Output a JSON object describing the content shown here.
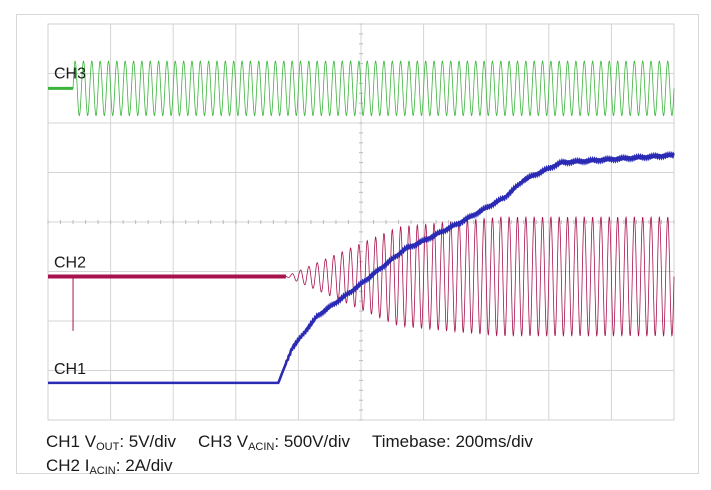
{
  "chart_data": {
    "type": "line",
    "title": "",
    "grid": true,
    "divisions": {
      "x": 10,
      "y": 8
    },
    "channels": [
      {
        "label": "CH3",
        "quantity": "V_ACIN",
        "scale": "500V/div",
        "color": "#3cb43c",
        "baseline_div": 6.7,
        "amplitude_div": 0.55,
        "start_div": 0.4,
        "cycles_per_div": 7.5
      },
      {
        "label": "CH2",
        "quantity": "I_ACIN",
        "scale": "2A/div",
        "color": "#a8124e",
        "baseline_div": 2.9,
        "start_div": 0.4,
        "cycles_per_div": 7.5,
        "envelope_div": [
          [
            0,
            0
          ],
          [
            3.8,
            0
          ],
          [
            5.6,
            1.0
          ],
          [
            7.2,
            1.2
          ],
          [
            10,
            1.2
          ]
        ]
      },
      {
        "label": "CH1",
        "quantity": "V_OUT",
        "scale": "5V/div",
        "color": "#2a2ab4",
        "points_div": [
          [
            0,
            0.75
          ],
          [
            3.68,
            0.75
          ],
          [
            3.74,
            0.95
          ],
          [
            3.9,
            1.45
          ],
          [
            4.3,
            2.1
          ],
          [
            4.9,
            2.65
          ],
          [
            5.7,
            3.45
          ],
          [
            6.0,
            3.62
          ],
          [
            6.6,
            4.0
          ],
          [
            7.3,
            4.5
          ],
          [
            7.6,
            4.85
          ],
          [
            8.2,
            5.2
          ],
          [
            10,
            5.35
          ]
        ]
      }
    ]
  },
  "captions": {
    "ch1_prefix": "CH1 V",
    "ch1_sub": "OUT",
    "ch1_scale": ": 5V/div",
    "ch3_prefix": "CH3 V",
    "ch3_sub": "ACIN",
    "ch3_scale": ": 500V/div",
    "timebase": "Timebase: 200ms/div",
    "ch2_prefix": "CH2 I",
    "ch2_sub": "ACIN",
    "ch2_scale": ": 2A/div"
  }
}
